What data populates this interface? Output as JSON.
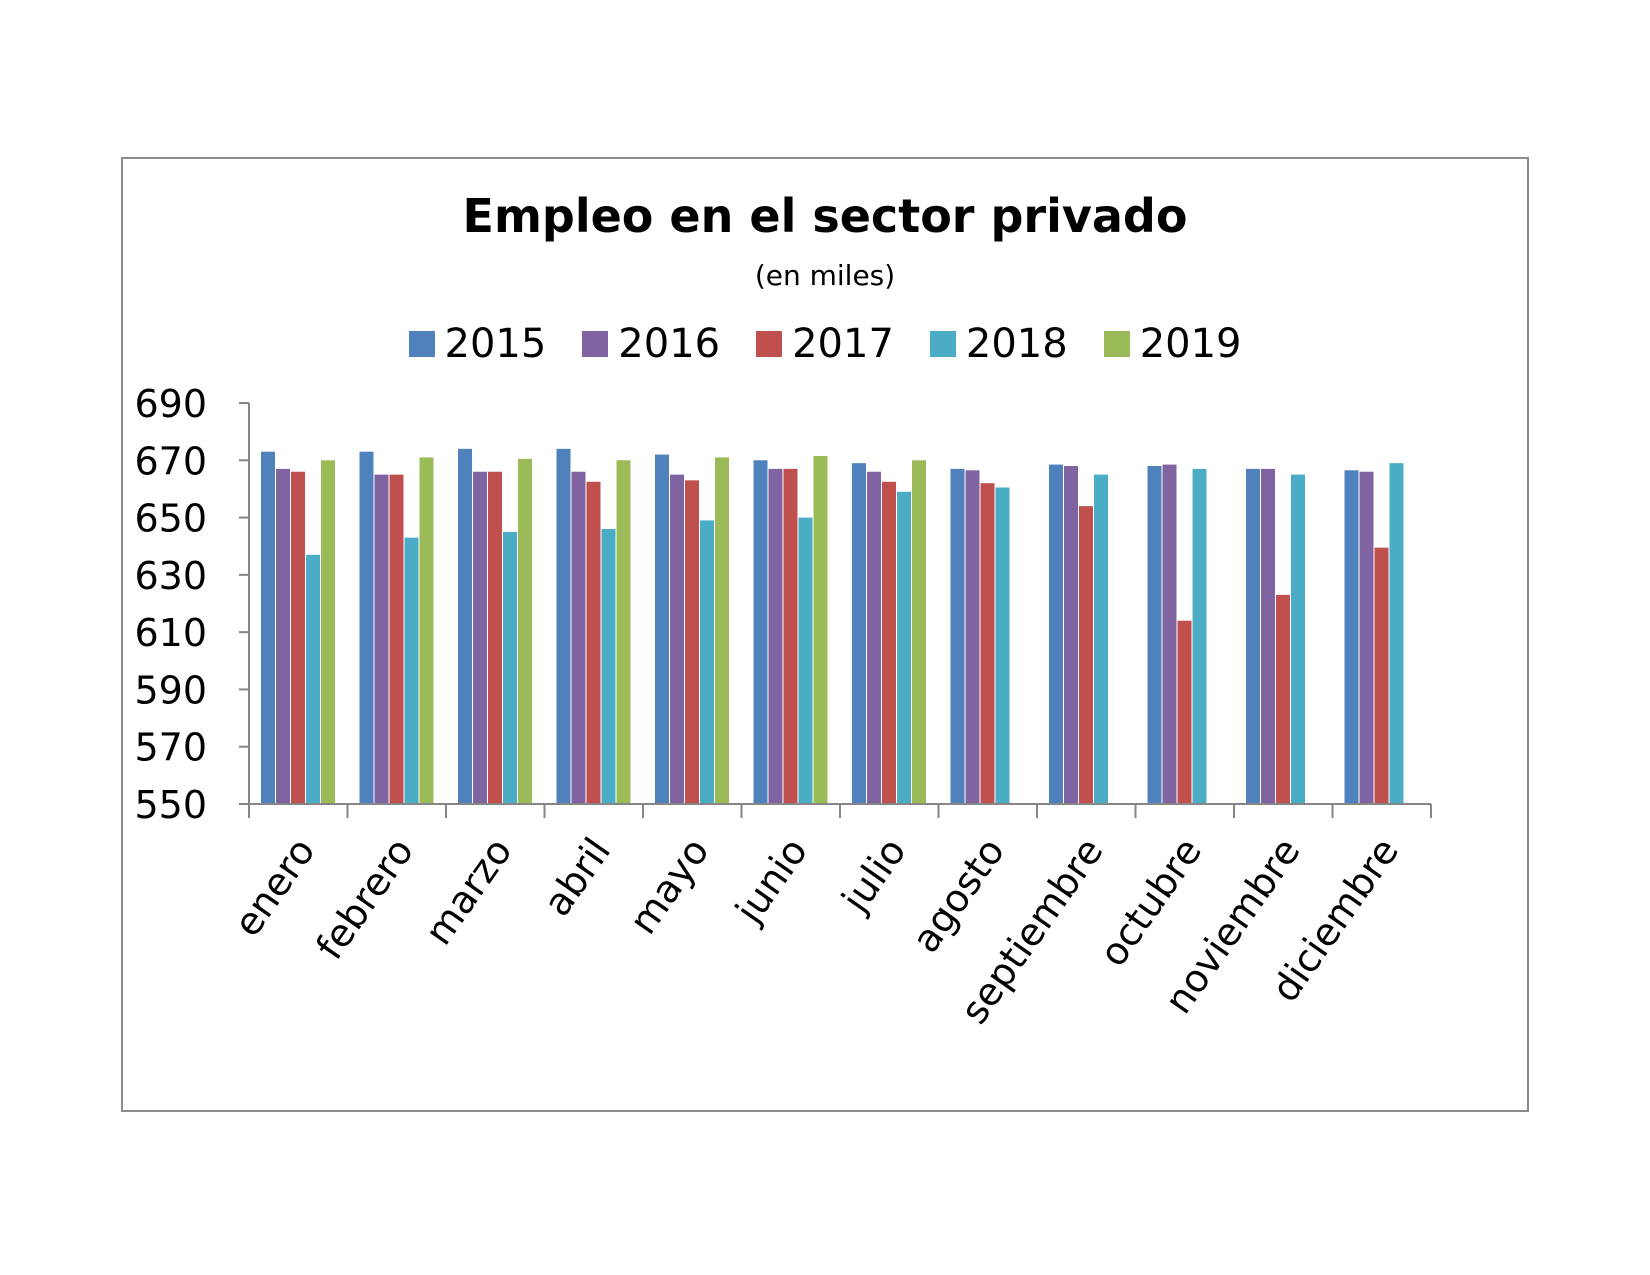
{
  "chart_data": {
    "type": "bar",
    "title": "Empleo en el sector privado",
    "subtitle": "(en miles)",
    "xlabel": "",
    "ylabel": "",
    "ylim": [
      550,
      690
    ],
    "yticks": [
      550,
      570,
      590,
      610,
      630,
      650,
      670,
      690
    ],
    "grid": false,
    "legend_position": "top",
    "categories": [
      "enero",
      "febrero",
      "marzo",
      "abril",
      "mayo",
      "junio",
      "julio",
      "agosto",
      "septiembre",
      "octubre",
      "noviembre",
      "diciembre"
    ],
    "series": [
      {
        "name": "2015",
        "color": "#4F81BD",
        "values": [
          673,
          673,
          674,
          674,
          672,
          670,
          669,
          667,
          668.5,
          668,
          667,
          666.5
        ]
      },
      {
        "name": "2016",
        "color": "#8064A2",
        "values": [
          667,
          665,
          666,
          666,
          665,
          667,
          666,
          666.5,
          668,
          668.5,
          667,
          666
        ]
      },
      {
        "name": "2017",
        "color": "#C0504D",
        "values": [
          666,
          665,
          666,
          662.5,
          663,
          667,
          662.5,
          662,
          654,
          614,
          623,
          639.5
        ]
      },
      {
        "name": "2018",
        "color": "#4BACC6",
        "values": [
          637,
          643,
          645,
          646,
          649,
          650,
          659,
          660.5,
          665,
          667,
          665,
          669
        ]
      },
      {
        "name": "2019",
        "color": "#9BBB59",
        "values": [
          670,
          671,
          670.5,
          670,
          671,
          671.5,
          670,
          null,
          null,
          null,
          null,
          null
        ]
      }
    ]
  }
}
